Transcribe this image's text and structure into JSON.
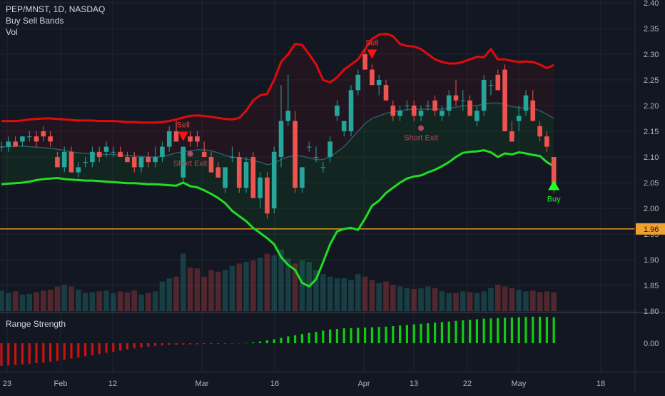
{
  "header": {
    "symbol_line": "PEP/MNST, 1D, NASDAQ",
    "indicator_1": "Buy Sell Bands",
    "indicator_2": "Vol"
  },
  "lower_pane": {
    "title": "Range Strength"
  },
  "colors": {
    "background": "#131722",
    "up": "#26a69a",
    "down": "#ef5350",
    "upper_band": "#e00b0b",
    "lower_band": "#22dd22",
    "mid_band": "#2e5a66",
    "level_line": "#f0a030",
    "strength_neg": "#cc1111",
    "strength_pos": "#11cc11"
  },
  "chart_data": [
    {
      "type": "candlestick",
      "title": "PEP/MNST, 1D, NASDAQ",
      "x_ticks": [
        "23",
        "Feb",
        "12",
        "Mar",
        "16",
        "Apr",
        "13",
        "22",
        "May",
        "18"
      ],
      "y_ticks": [
        "2.40",
        "2.35",
        "2.30",
        "2.25",
        "2.20",
        "2.15",
        "2.10",
        "2.05",
        "2.00",
        "1.95",
        "1.90",
        "1.85",
        "1.80"
      ],
      "ylim": [
        1.8,
        2.4
      ],
      "price_level": {
        "value": 1.96,
        "label": "1.96"
      },
      "ohlc": [
        [
          2.12,
          2.13,
          2.11,
          2.12
        ],
        [
          2.12,
          2.14,
          2.11,
          2.13
        ],
        [
          2.13,
          2.14,
          2.12,
          2.12
        ],
        [
          2.13,
          2.14,
          2.12,
          2.14
        ],
        [
          2.14,
          2.15,
          2.13,
          2.14
        ],
        [
          2.14,
          2.15,
          2.12,
          2.13
        ],
        [
          2.15,
          2.16,
          2.13,
          2.14
        ],
        [
          2.14,
          2.15,
          2.12,
          2.13
        ],
        [
          2.1,
          2.11,
          2.08,
          2.08
        ],
        [
          2.08,
          2.12,
          2.07,
          2.11
        ],
        [
          2.11,
          2.12,
          2.07,
          2.07
        ],
        [
          2.07,
          2.09,
          2.06,
          2.08
        ],
        [
          2.09,
          2.1,
          2.08,
          2.09
        ],
        [
          2.09,
          2.12,
          2.08,
          2.11
        ],
        [
          2.11,
          2.12,
          2.09,
          2.1
        ],
        [
          2.11,
          2.13,
          2.1,
          2.12
        ],
        [
          2.11,
          2.12,
          2.1,
          2.11
        ],
        [
          2.11,
          2.12,
          2.1,
          2.1
        ],
        [
          2.1,
          2.11,
          2.09,
          2.09
        ],
        [
          2.1,
          2.11,
          2.07,
          2.08
        ],
        [
          2.08,
          2.1,
          2.07,
          2.1
        ],
        [
          2.1,
          2.11,
          2.08,
          2.09
        ],
        [
          2.09,
          2.12,
          2.08,
          2.1
        ],
        [
          2.1,
          2.13,
          2.09,
          2.12
        ],
        [
          2.12,
          2.16,
          2.11,
          2.15
        ],
        [
          2.15,
          2.17,
          2.13,
          2.13
        ],
        [
          2.06,
          2.12,
          2.05,
          2.12
        ],
        [
          2.14,
          2.15,
          2.12,
          2.13
        ],
        [
          2.14,
          2.15,
          2.12,
          2.13
        ],
        [
          2.11,
          2.13,
          2.1,
          2.1
        ],
        [
          2.1,
          2.11,
          2.07,
          2.07
        ],
        [
          2.08,
          2.09,
          2.06,
          2.06
        ],
        [
          2.04,
          2.08,
          2.03,
          2.08
        ],
        [
          2.1,
          2.12,
          2.09,
          2.1
        ],
        [
          2.1,
          2.11,
          2.03,
          2.04
        ],
        [
          2.04,
          2.1,
          2.03,
          2.09
        ],
        [
          2.1,
          2.11,
          2.02,
          2.02
        ],
        [
          2.02,
          2.07,
          2.0,
          2.06
        ],
        [
          2.06,
          2.07,
          1.98,
          1.99
        ],
        [
          2.0,
          2.12,
          1.99,
          2.11
        ],
        [
          2.1,
          2.24,
          2.08,
          2.17
        ],
        [
          2.17,
          2.26,
          2.16,
          2.19
        ],
        [
          2.17,
          2.19,
          2.03,
          2.04
        ],
        [
          2.04,
          2.08,
          2.03,
          2.08
        ],
        [
          2.12,
          2.13,
          2.11,
          2.12
        ],
        [
          2.1,
          2.12,
          2.09,
          2.1
        ],
        [
          2.08,
          2.09,
          2.07,
          2.08
        ],
        [
          2.1,
          2.14,
          2.09,
          2.13
        ],
        [
          2.18,
          2.21,
          2.17,
          2.2
        ],
        [
          2.15,
          2.17,
          2.14,
          2.17
        ],
        [
          2.15,
          2.24,
          2.14,
          2.23
        ],
        [
          2.23,
          2.27,
          2.22,
          2.26
        ],
        [
          2.3,
          2.31,
          2.27,
          2.27
        ],
        [
          2.27,
          2.28,
          2.24,
          2.24
        ],
        [
          2.24,
          2.26,
          2.22,
          2.25
        ],
        [
          2.24,
          2.25,
          2.21,
          2.21
        ],
        [
          2.2,
          2.21,
          2.17,
          2.18
        ],
        [
          2.18,
          2.2,
          2.17,
          2.19
        ],
        [
          2.2,
          2.21,
          2.19,
          2.2
        ],
        [
          2.2,
          2.21,
          2.17,
          2.18
        ],
        [
          2.18,
          2.2,
          2.17,
          2.19
        ],
        [
          2.2,
          2.21,
          2.19,
          2.2
        ],
        [
          2.21,
          2.22,
          2.18,
          2.19
        ],
        [
          2.18,
          2.2,
          2.17,
          2.19
        ],
        [
          2.19,
          2.23,
          2.18,
          2.22
        ],
        [
          2.22,
          2.25,
          2.2,
          2.21
        ],
        [
          2.21,
          2.23,
          2.19,
          2.21
        ],
        [
          2.21,
          2.22,
          2.18,
          2.18
        ],
        [
          2.17,
          2.2,
          2.16,
          2.19
        ],
        [
          2.19,
          2.26,
          2.18,
          2.25
        ],
        [
          2.24,
          2.25,
          2.22,
          2.24
        ],
        [
          2.26,
          2.27,
          2.23,
          2.23
        ],
        [
          2.27,
          2.28,
          2.15,
          2.15
        ],
        [
          2.15,
          2.17,
          2.13,
          2.13
        ],
        [
          2.17,
          2.2,
          2.15,
          2.18
        ],
        [
          2.19,
          2.23,
          2.18,
          2.22
        ],
        [
          2.21,
          2.23,
          2.17,
          2.17
        ],
        [
          2.16,
          2.17,
          2.13,
          2.14
        ],
        [
          2.14,
          2.15,
          2.11,
          2.12
        ],
        [
          2.1,
          2.1,
          2.03,
          2.04
        ]
      ],
      "upper_band": [
        2.17,
        2.17,
        2.17,
        2.171,
        2.173,
        2.174,
        2.175,
        2.175,
        2.174,
        2.173,
        2.172,
        2.171,
        2.171,
        2.171,
        2.17,
        2.17,
        2.17,
        2.169,
        2.168,
        2.168,
        2.167,
        2.167,
        2.167,
        2.168,
        2.17,
        2.173,
        2.177,
        2.18,
        2.181,
        2.18,
        2.178,
        2.176,
        2.174,
        2.173,
        2.176,
        2.19,
        2.21,
        2.22,
        2.223,
        2.25,
        2.285,
        2.3,
        2.32,
        2.318,
        2.3,
        2.28,
        2.25,
        2.245,
        2.255,
        2.27,
        2.28,
        2.29,
        2.31,
        2.33,
        2.338,
        2.34,
        2.335,
        2.32,
        2.316,
        2.315,
        2.31,
        2.3,
        2.29,
        2.285,
        2.282,
        2.282,
        2.285,
        2.29,
        2.295,
        2.294,
        2.31,
        2.29,
        2.29,
        2.287,
        2.285,
        2.286,
        2.285,
        2.28,
        2.273,
        2.279
      ],
      "mid_band": [
        2.12,
        2.12,
        2.121,
        2.121,
        2.12,
        2.119,
        2.118,
        2.117,
        2.115,
        2.113,
        2.11,
        2.108,
        2.107,
        2.106,
        2.105,
        2.105,
        2.105,
        2.104,
        2.103,
        2.102,
        2.101,
        2.1,
        2.1,
        2.101,
        2.104,
        2.108,
        2.11,
        2.112,
        2.114,
        2.114,
        2.112,
        2.108,
        2.103,
        2.1,
        2.098,
        2.096,
        2.093,
        2.09,
        2.085,
        2.088,
        2.095,
        2.1,
        2.103,
        2.102,
        2.098,
        2.095,
        2.095,
        2.1,
        2.11,
        2.12,
        2.135,
        2.15,
        2.165,
        2.175,
        2.18,
        2.185,
        2.188,
        2.19,
        2.192,
        2.193,
        2.193,
        2.193,
        2.193,
        2.193,
        2.195,
        2.197,
        2.2,
        2.2,
        2.2,
        2.203,
        2.205,
        2.205,
        2.202,
        2.198,
        2.196,
        2.195,
        2.195,
        2.19,
        2.183,
        2.175
      ],
      "lower_band": [
        2.047,
        2.048,
        2.049,
        2.05,
        2.052,
        2.055,
        2.057,
        2.058,
        2.059,
        2.057,
        2.056,
        2.055,
        2.054,
        2.054,
        2.053,
        2.052,
        2.051,
        2.05,
        2.049,
        2.049,
        2.048,
        2.047,
        2.047,
        2.046,
        2.045,
        2.044,
        2.05,
        2.043,
        2.041,
        2.035,
        2.028,
        2.02,
        2.01,
        1.995,
        1.985,
        1.975,
        1.962,
        1.952,
        1.942,
        1.93,
        1.905,
        1.89,
        1.88,
        1.855,
        1.848,
        1.862,
        1.895,
        1.93,
        1.955,
        1.96,
        1.962,
        1.958,
        1.98,
        2.005,
        2.015,
        2.03,
        2.04,
        2.05,
        2.058,
        2.062,
        2.064,
        2.07,
        2.075,
        2.082,
        2.09,
        2.1,
        2.108,
        2.11,
        2.111,
        2.113,
        2.109,
        2.1,
        2.107,
        2.105,
        2.109,
        2.107,
        2.104,
        2.102,
        2.09,
        2.082
      ],
      "signals": [
        {
          "index": 26,
          "type": "sell",
          "label": "Sell"
        },
        {
          "index": 53,
          "type": "sell",
          "label": "Sell"
        },
        {
          "index": 79,
          "type": "buy",
          "label": "Buy"
        },
        {
          "index": 27,
          "type": "short-exit",
          "label": "Short Exit"
        },
        {
          "index": 60,
          "type": "short-exit",
          "label": "Short Exit"
        }
      ]
    },
    {
      "type": "bar",
      "title": "Vol",
      "values": [
        0.25,
        0.22,
        0.24,
        0.2,
        0.21,
        0.23,
        0.25,
        0.26,
        0.3,
        0.32,
        0.3,
        0.26,
        0.22,
        0.23,
        0.24,
        0.25,
        0.22,
        0.24,
        0.23,
        0.25,
        0.2,
        0.22,
        0.24,
        0.36,
        0.4,
        0.42,
        0.7,
        0.53,
        0.52,
        0.42,
        0.5,
        0.48,
        0.5,
        0.55,
        0.58,
        0.6,
        0.62,
        0.65,
        0.7,
        0.68,
        0.75,
        0.64,
        0.58,
        0.62,
        0.6,
        0.5,
        0.45,
        0.42,
        0.4,
        0.4,
        0.38,
        0.45,
        0.42,
        0.38,
        0.34,
        0.36,
        0.32,
        0.3,
        0.28,
        0.27,
        0.28,
        0.3,
        0.28,
        0.24,
        0.22,
        0.22,
        0.24,
        0.23,
        0.22,
        0.24,
        0.28,
        0.32,
        0.3,
        0.28,
        0.26,
        0.24,
        0.25,
        0.23,
        0.24,
        0.23
      ]
    },
    {
      "type": "bar",
      "title": "Range Strength",
      "y_ticks": [
        "0.00"
      ],
      "ylim": [
        -1,
        1
      ],
      "values": [
        -0.8,
        -0.78,
        -0.76,
        -0.74,
        -0.72,
        -0.7,
        -0.68,
        -0.65,
        -0.62,
        -0.58,
        -0.54,
        -0.5,
        -0.46,
        -0.42,
        -0.38,
        -0.34,
        -0.3,
        -0.26,
        -0.22,
        -0.18,
        -0.15,
        -0.12,
        -0.09,
        -0.07,
        -0.06,
        -0.05,
        -0.05,
        -0.04,
        -0.04,
        -0.03,
        -0.03,
        -0.03,
        -0.02,
        -0.02,
        -0.01,
        0.01,
        0.03,
        0.06,
        0.1,
        0.14,
        0.19,
        0.24,
        0.28,
        0.32,
        0.36,
        0.4,
        0.44,
        0.48,
        0.5,
        0.52,
        0.53,
        0.54,
        0.55,
        0.56,
        0.57,
        0.58,
        0.6,
        0.62,
        0.64,
        0.66,
        0.68,
        0.7,
        0.72,
        0.74,
        0.76,
        0.78,
        0.8,
        0.82,
        0.84,
        0.86,
        0.87,
        0.88,
        0.89,
        0.9,
        0.91,
        0.92,
        0.93,
        0.93,
        0.92,
        0.91
      ]
    }
  ]
}
